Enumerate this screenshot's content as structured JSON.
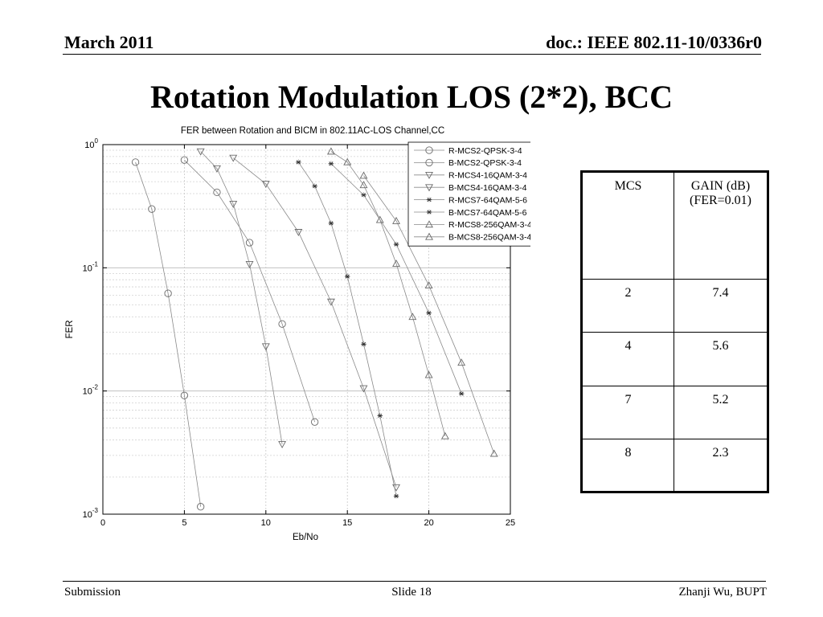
{
  "header": {
    "left": "March 2011",
    "right": "doc.: IEEE 802.11-10/0336r0"
  },
  "slide_title": "Rotation Modulation LOS (2*2), BCC",
  "footer": {
    "left": "Submission",
    "center": "Slide 18",
    "right": "Zhanji Wu, BUPT"
  },
  "table": {
    "headers": [
      "MCS",
      "GAIN (dB)",
      "(FER=0.01)"
    ],
    "rows": [
      {
        "mcs": "2",
        "gain": "7.4"
      },
      {
        "mcs": "4",
        "gain": "5.6"
      },
      {
        "mcs": "7",
        "gain": "5.2"
      },
      {
        "mcs": "8",
        "gain": "2.3"
      }
    ]
  },
  "chart_data": {
    "type": "line",
    "title": "FER between Rotation and BICM in 802.11AC-LOS Channel,CC",
    "xlabel": "Eb/No",
    "ylabel": "FER",
    "xlim": [
      0,
      25
    ],
    "ylim": [
      0.001,
      1
    ],
    "yscale": "log",
    "grid": true,
    "legend_position": "top-right",
    "x_ticks": [
      "0",
      "5",
      "10",
      "15",
      "20",
      "25"
    ],
    "y_ticks": [
      {
        "base": "10",
        "exp": "0"
      },
      {
        "base": "10",
        "exp": "-1"
      },
      {
        "base": "10",
        "exp": "-2"
      },
      {
        "base": "10",
        "exp": "-3"
      }
    ],
    "series": [
      {
        "name": "R-MCS2-QPSK-3-4",
        "marker": "circle",
        "x": [
          2,
          3,
          4,
          5,
          6
        ],
        "y": [
          0.72,
          0.3,
          0.062,
          0.0092,
          0.00115
        ]
      },
      {
        "name": "B-MCS2-QPSK-3-4",
        "marker": "circle",
        "x": [
          5,
          7,
          9,
          11,
          13
        ],
        "y": [
          0.75,
          0.41,
          0.16,
          0.035,
          0.0056
        ]
      },
      {
        "name": "R-MCS4-16QAM-3-4",
        "marker": "triangle-down",
        "x": [
          6,
          7,
          8,
          9,
          10,
          11
        ],
        "y": [
          0.88,
          0.64,
          0.33,
          0.107,
          0.023,
          0.0037
        ]
      },
      {
        "name": "B-MCS4-16QAM-3-4",
        "marker": "triangle-down",
        "x": [
          8,
          10,
          12,
          14,
          16,
          18
        ],
        "y": [
          0.78,
          0.48,
          0.195,
          0.053,
          0.0105,
          0.00165
        ]
      },
      {
        "name": "R-MCS7-64QAM-5-6",
        "marker": "star",
        "x": [
          12,
          13,
          14,
          15,
          16,
          17,
          18
        ],
        "y": [
          0.72,
          0.46,
          0.23,
          0.085,
          0.024,
          0.0063,
          0.0014
        ]
      },
      {
        "name": "B-MCS7-64QAM-5-6",
        "marker": "star",
        "x": [
          14,
          16,
          18,
          20,
          22
        ],
        "y": [
          0.7,
          0.39,
          0.155,
          0.043,
          0.0095
        ]
      },
      {
        "name": "R-MCS8-256QAM-3-4",
        "marker": "triangle-up",
        "x": [
          14,
          15,
          16,
          17,
          18,
          19,
          20,
          21
        ],
        "y": [
          0.88,
          0.72,
          0.47,
          0.245,
          0.108,
          0.04,
          0.0135,
          0.0043
        ]
      },
      {
        "name": "B-MCS8-256QAM-3-4",
        "marker": "triangle-up",
        "x": [
          16,
          18,
          20,
          22,
          24
        ],
        "y": [
          0.56,
          0.24,
          0.072,
          0.017,
          0.0031
        ]
      }
    ]
  }
}
